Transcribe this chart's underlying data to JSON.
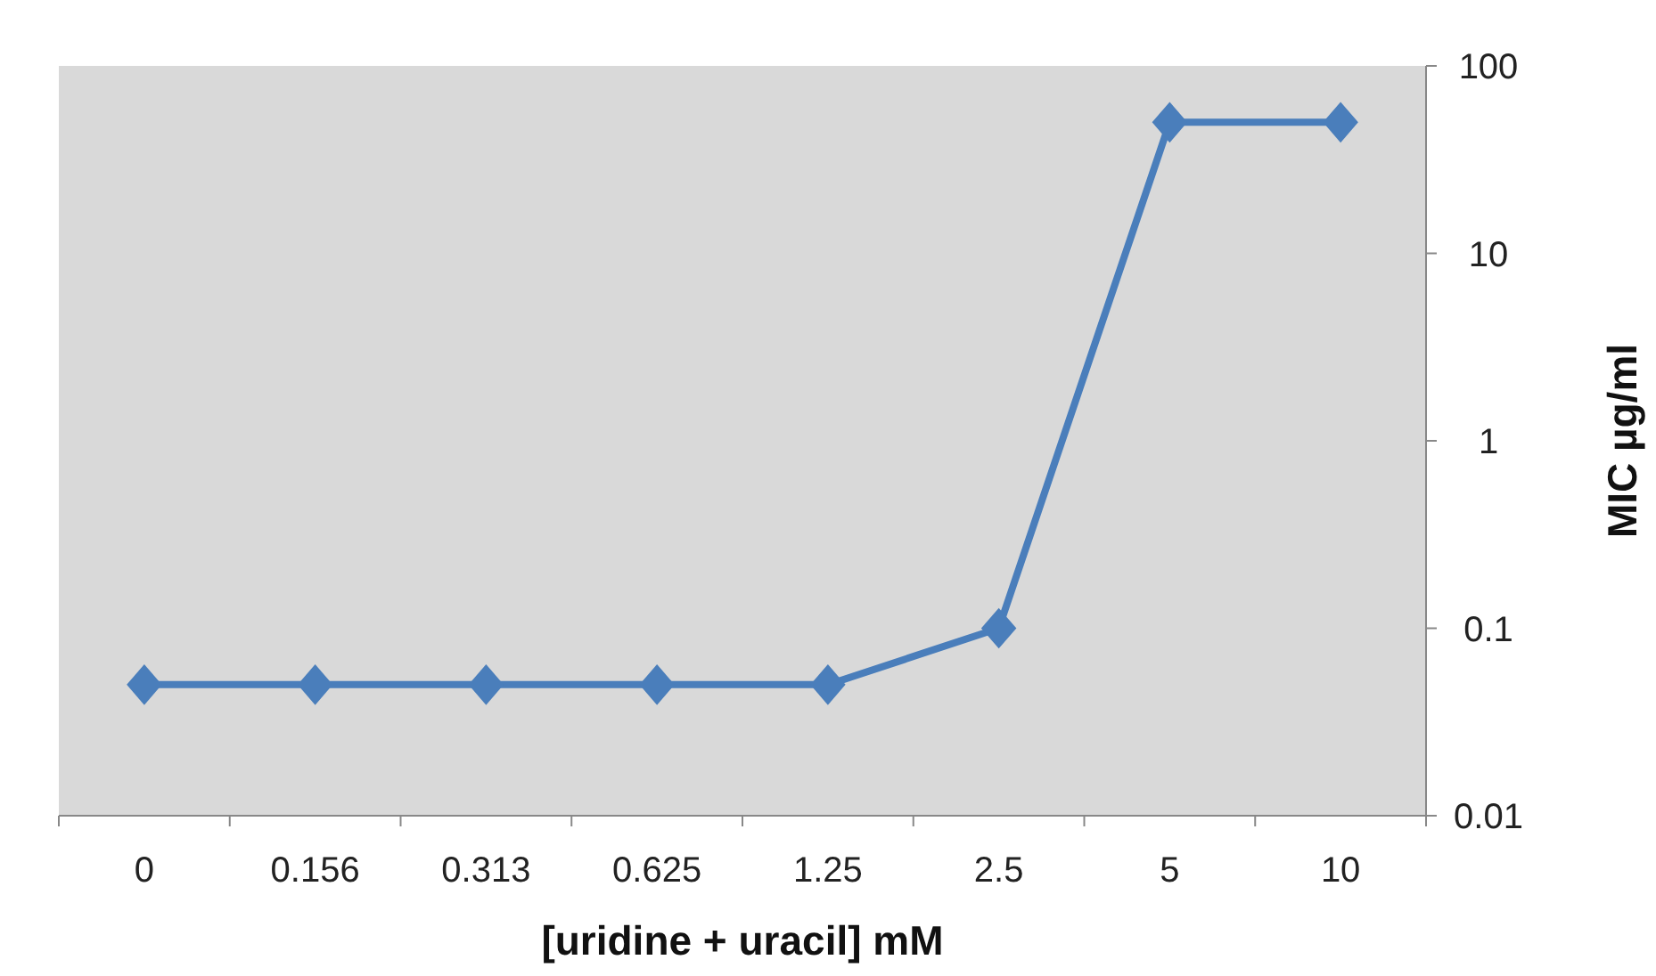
{
  "chart_data": {
    "type": "line",
    "xlabel": "[uridine + uracil] mM",
    "ylabel": "MIC µg/ml",
    "categories": [
      "0",
      "0.156",
      "0.313",
      "0.625",
      "1.25",
      "2.5",
      "5",
      "10"
    ],
    "series": [
      {
        "color": "#4a7ebb",
        "values": [
          0.05,
          0.05,
          0.05,
          0.05,
          0.05,
          0.1,
          50,
          50
        ]
      }
    ],
    "log": true,
    "ylim": [
      0.01,
      100
    ],
    "yticks": [
      0.01,
      0.1,
      1,
      10,
      100
    ],
    "marker": "diamond",
    "grid": false
  }
}
